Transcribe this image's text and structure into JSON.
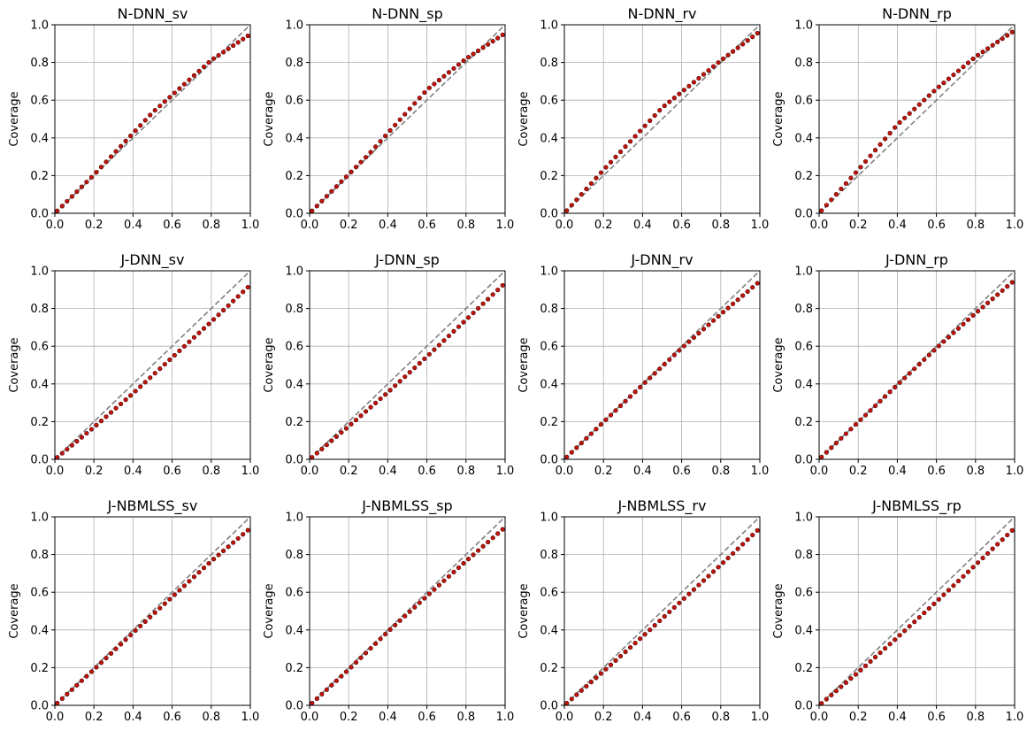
{
  "chart_data": [
    {
      "type": "scatter",
      "title": "N-DNN_sv",
      "ylabel": "Coverage",
      "xlim": [
        0,
        1
      ],
      "ylim": [
        0,
        1
      ],
      "grid": true,
      "xticks": [
        "0.0",
        "0.2",
        "0.4",
        "0.6",
        "0.8",
        "1.0"
      ],
      "yticks": [
        "0.0",
        "0.2",
        "0.4",
        "0.6",
        "0.8",
        "1.0"
      ],
      "reference": "diagonal",
      "deviation": [
        [
          0.0,
          0.0
        ],
        [
          0.2,
          0.004
        ],
        [
          0.5,
          0.035
        ],
        [
          0.8,
          0.012
        ],
        [
          1.0,
          -0.05
        ]
      ]
    },
    {
      "type": "scatter",
      "title": "N-DNN_sp",
      "ylabel": "Coverage",
      "xlim": [
        0,
        1
      ],
      "ylim": [
        0,
        1
      ],
      "grid": true,
      "xticks": [
        "0.0",
        "0.2",
        "0.4",
        "0.6",
        "0.8",
        "1.0"
      ],
      "yticks": [
        "0.0",
        "0.2",
        "0.4",
        "0.6",
        "0.8",
        "1.0"
      ],
      "reference": "diagonal",
      "deviation": [
        [
          0.0,
          0.0
        ],
        [
          0.3,
          0.01
        ],
        [
          0.6,
          0.055
        ],
        [
          0.8,
          0.02
        ],
        [
          1.0,
          -0.045
        ]
      ]
    },
    {
      "type": "scatter",
      "title": "N-DNN_rv",
      "ylabel": "Coverage",
      "xlim": [
        0,
        1
      ],
      "ylim": [
        0,
        1
      ],
      "grid": true,
      "xticks": [
        "0.0",
        "0.2",
        "0.4",
        "0.6",
        "0.8",
        "1.0"
      ],
      "yticks": [
        "0.0",
        "0.2",
        "0.4",
        "0.6",
        "0.8",
        "1.0"
      ],
      "reference": "diagonal",
      "deviation": [
        [
          0.0,
          0.0
        ],
        [
          0.2,
          0.03
        ],
        [
          0.5,
          0.06
        ],
        [
          0.8,
          0.01
        ],
        [
          1.0,
          -0.035
        ]
      ]
    },
    {
      "type": "scatter",
      "title": "N-DNN_rp",
      "ylabel": "Coverage",
      "xlim": [
        0,
        1
      ],
      "ylim": [
        0,
        1
      ],
      "grid": true,
      "xticks": [
        "0.0",
        "0.2",
        "0.4",
        "0.6",
        "0.8",
        "1.0"
      ],
      "yticks": [
        "0.0",
        "0.2",
        "0.4",
        "0.6",
        "0.8",
        "1.0"
      ],
      "reference": "diagonal",
      "deviation": [
        [
          0.0,
          0.0
        ],
        [
          0.2,
          0.03
        ],
        [
          0.4,
          0.07
        ],
        [
          0.6,
          0.06
        ],
        [
          0.8,
          0.03
        ],
        [
          1.0,
          -0.03
        ]
      ]
    },
    {
      "type": "scatter",
      "title": "J-DNN_sv",
      "ylabel": "Coverage",
      "xlim": [
        0,
        1
      ],
      "ylim": [
        0,
        1
      ],
      "grid": true,
      "xticks": [
        "0.0",
        "0.2",
        "0.4",
        "0.6",
        "0.8",
        "1.0"
      ],
      "yticks": [
        "0.0",
        "0.2",
        "0.4",
        "0.6",
        "0.8",
        "1.0"
      ],
      "reference": "diagonal",
      "deviation": [
        [
          0.0,
          0.0
        ],
        [
          0.2,
          -0.03
        ],
        [
          0.4,
          -0.05
        ],
        [
          0.6,
          -0.06
        ],
        [
          0.8,
          -0.07
        ],
        [
          1.0,
          -0.075
        ]
      ]
    },
    {
      "type": "scatter",
      "title": "J-DNN_sp",
      "ylabel": "Coverage",
      "xlim": [
        0,
        1
      ],
      "ylim": [
        0,
        1
      ],
      "grid": true,
      "xticks": [
        "0.0",
        "0.2",
        "0.4",
        "0.6",
        "0.8",
        "1.0"
      ],
      "yticks": [
        "0.0",
        "0.2",
        "0.4",
        "0.6",
        "0.8",
        "1.0"
      ],
      "reference": "diagonal",
      "deviation": [
        [
          0.0,
          0.0
        ],
        [
          0.2,
          -0.025
        ],
        [
          0.4,
          -0.045
        ],
        [
          0.6,
          -0.055
        ],
        [
          0.8,
          -0.06
        ],
        [
          1.0,
          -0.065
        ]
      ]
    },
    {
      "type": "scatter",
      "title": "J-DNN_rv",
      "ylabel": "Coverage",
      "xlim": [
        0,
        1
      ],
      "ylim": [
        0,
        1
      ],
      "grid": true,
      "xticks": [
        "0.0",
        "0.2",
        "0.4",
        "0.6",
        "0.8",
        "1.0"
      ],
      "yticks": [
        "0.0",
        "0.2",
        "0.4",
        "0.6",
        "0.8",
        "1.0"
      ],
      "reference": "diagonal",
      "deviation": [
        [
          0.0,
          0.0
        ],
        [
          0.4,
          -0.005
        ],
        [
          0.6,
          -0.01
        ],
        [
          0.8,
          -0.03
        ],
        [
          1.0,
          -0.055
        ]
      ]
    },
    {
      "type": "scatter",
      "title": "J-DNN_rp",
      "ylabel": "Coverage",
      "xlim": [
        0,
        1
      ],
      "ylim": [
        0,
        1
      ],
      "grid": true,
      "xticks": [
        "0.0",
        "0.2",
        "0.4",
        "0.6",
        "0.8",
        "1.0"
      ],
      "yticks": [
        "0.0",
        "0.2",
        "0.4",
        "0.6",
        "0.8",
        "1.0"
      ],
      "reference": "diagonal",
      "deviation": [
        [
          0.0,
          0.0
        ],
        [
          0.4,
          -0.005
        ],
        [
          0.6,
          -0.01
        ],
        [
          0.8,
          -0.025
        ],
        [
          1.0,
          -0.05
        ]
      ]
    },
    {
      "type": "scatter",
      "title": "J-NBMLSS_sv",
      "ylabel": "Coverage",
      "xlim": [
        0,
        1
      ],
      "ylim": [
        0,
        1
      ],
      "grid": true,
      "xticks": [
        "0.0",
        "0.2",
        "0.4",
        "0.6",
        "0.8",
        "1.0"
      ],
      "yticks": [
        "0.0",
        "0.2",
        "0.4",
        "0.6",
        "0.8",
        "1.0"
      ],
      "reference": "diagonal",
      "deviation": [
        [
          0.0,
          0.0
        ],
        [
          0.2,
          -0.01
        ],
        [
          0.4,
          -0.015
        ],
        [
          0.6,
          -0.025
        ],
        [
          0.8,
          -0.035
        ],
        [
          1.0,
          -0.06
        ]
      ]
    },
    {
      "type": "scatter",
      "title": "J-NBMLSS_sp",
      "ylabel": "Coverage",
      "xlim": [
        0,
        1
      ],
      "ylim": [
        0,
        1
      ],
      "grid": true,
      "xticks": [
        "0.0",
        "0.2",
        "0.4",
        "0.6",
        "0.8",
        "1.0"
      ],
      "yticks": [
        "0.0",
        "0.2",
        "0.4",
        "0.6",
        "0.8",
        "1.0"
      ],
      "reference": "diagonal",
      "deviation": [
        [
          0.0,
          0.0
        ],
        [
          0.2,
          -0.01
        ],
        [
          0.4,
          -0.01
        ],
        [
          0.6,
          -0.02
        ],
        [
          0.8,
          -0.035
        ],
        [
          1.0,
          -0.055
        ]
      ]
    },
    {
      "type": "scatter",
      "title": "J-NBMLSS_rv",
      "ylabel": "Coverage",
      "xlim": [
        0,
        1
      ],
      "ylim": [
        0,
        1
      ],
      "grid": true,
      "xticks": [
        "0.0",
        "0.2",
        "0.4",
        "0.6",
        "0.8",
        "1.0"
      ],
      "yticks": [
        "0.0",
        "0.2",
        "0.4",
        "0.6",
        "0.8",
        "1.0"
      ],
      "reference": "diagonal",
      "deviation": [
        [
          0.0,
          0.0
        ],
        [
          0.2,
          -0.02
        ],
        [
          0.4,
          -0.035
        ],
        [
          0.6,
          -0.045
        ],
        [
          0.8,
          -0.055
        ],
        [
          1.0,
          -0.06
        ]
      ]
    },
    {
      "type": "scatter",
      "title": "J-NBMLSS_rp",
      "ylabel": "Coverage",
      "xlim": [
        0,
        1
      ],
      "ylim": [
        0,
        1
      ],
      "grid": true,
      "xticks": [
        "0.0",
        "0.2",
        "0.4",
        "0.6",
        "0.8",
        "1.0"
      ],
      "yticks": [
        "0.0",
        "0.2",
        "0.4",
        "0.6",
        "0.8",
        "1.0"
      ],
      "reference": "diagonal",
      "deviation": [
        [
          0.0,
          0.0
        ],
        [
          0.2,
          -0.025
        ],
        [
          0.4,
          -0.04
        ],
        [
          0.6,
          -0.05
        ],
        [
          0.8,
          -0.055
        ],
        [
          1.0,
          -0.06
        ]
      ]
    }
  ],
  "style": {
    "point_fill": "#c0140c",
    "point_edge": "#4a0000",
    "reference_line": "#808080",
    "grid": "#b0b0b0",
    "axis": "#000000"
  },
  "n_points": 40
}
